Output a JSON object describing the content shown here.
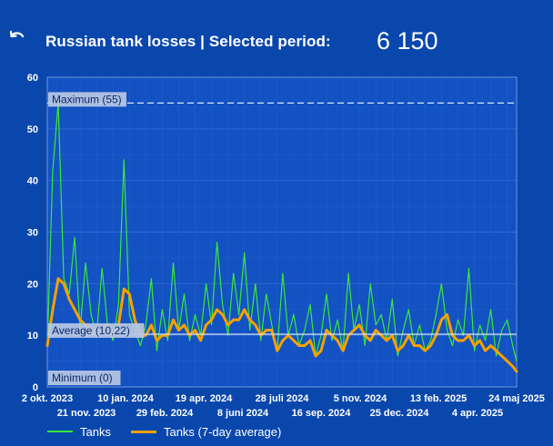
{
  "header": {
    "back_icon": "undo-arrow-icon",
    "title": "Russian tank losses | Selected period:",
    "total": "6 150"
  },
  "chart_data": {
    "type": "line",
    "y_ticks": [
      "0",
      "10",
      "20",
      "30",
      "40",
      "50",
      "60"
    ],
    "ylim": [
      0,
      60
    ],
    "x_range": [
      "2023-10-02",
      "2025-05-24"
    ],
    "x_tick_labels_top": [
      "2 okt. 2023",
      "10 jan. 2024",
      "19 apr. 2024",
      "28 juli 2024",
      "5 nov. 2024",
      "13 feb. 2025",
      "24 maj 2025"
    ],
    "x_tick_labels_bottom": [
      "21 nov. 2023",
      "29 feb. 2024",
      "8 juni 2024",
      "16 sep. 2024",
      "25 dec. 2024",
      "4 apr. 2025"
    ],
    "reference_lines": [
      {
        "label": "Maximum (55)",
        "value": 55,
        "style": "dashed"
      },
      {
        "label": "Average (10,22)",
        "value": 10.22,
        "style": "solid"
      },
      {
        "label": "Minimum (0)",
        "value": 0,
        "style": "solid"
      }
    ],
    "grid": true,
    "legend_position": "bottom-left",
    "series": [
      {
        "name": "Tanks",
        "color": "#39e839",
        "x": [
          "2023-10-02",
          "2023-10-09",
          "2023-10-16",
          "2023-10-23",
          "2023-10-30",
          "2023-11-06",
          "2023-11-13",
          "2023-11-20",
          "2023-11-27",
          "2023-12-04",
          "2023-12-11",
          "2023-12-18",
          "2023-12-25",
          "2024-01-01",
          "2024-01-08",
          "2024-01-15",
          "2024-01-22",
          "2024-01-29",
          "2024-02-05",
          "2024-02-12",
          "2024-02-19",
          "2024-02-26",
          "2024-03-04",
          "2024-03-11",
          "2024-03-18",
          "2024-03-25",
          "2024-04-01",
          "2024-04-08",
          "2024-04-15",
          "2024-04-22",
          "2024-04-29",
          "2024-05-06",
          "2024-05-13",
          "2024-05-20",
          "2024-05-27",
          "2024-06-03",
          "2024-06-10",
          "2024-06-17",
          "2024-06-24",
          "2024-07-01",
          "2024-07-08",
          "2024-07-15",
          "2024-07-22",
          "2024-07-29",
          "2024-08-05",
          "2024-08-12",
          "2024-08-19",
          "2024-08-26",
          "2024-09-02",
          "2024-09-09",
          "2024-09-16",
          "2024-09-23",
          "2024-09-30",
          "2024-10-07",
          "2024-10-14",
          "2024-10-21",
          "2024-10-28",
          "2024-11-04",
          "2024-11-11",
          "2024-11-18",
          "2024-11-25",
          "2024-12-02",
          "2024-12-09",
          "2024-12-16",
          "2024-12-23",
          "2024-12-30",
          "2025-01-06",
          "2025-01-13",
          "2025-01-20",
          "2025-01-27",
          "2025-02-03",
          "2025-02-10",
          "2025-02-17",
          "2025-02-24",
          "2025-03-03",
          "2025-03-10",
          "2025-03-17",
          "2025-03-24",
          "2025-03-31",
          "2025-04-07",
          "2025-04-14",
          "2025-04-21",
          "2025-04-28",
          "2025-05-05",
          "2025-05-12",
          "2025-05-19",
          "2025-05-24"
        ],
        "values": [
          8,
          42,
          55,
          21,
          18,
          29,
          11,
          24,
          14,
          10,
          23,
          12,
          9,
          16,
          44,
          14,
          11,
          8,
          12,
          21,
          7,
          15,
          9,
          24,
          11,
          18,
          9,
          14,
          10,
          20,
          12,
          28,
          16,
          10,
          22,
          14,
          26,
          11,
          20,
          9,
          18,
          12,
          7,
          22,
          10,
          14,
          8,
          11,
          16,
          6,
          10,
          18,
          9,
          13,
          7,
          22,
          11,
          16,
          8,
          20,
          12,
          14,
          9,
          17,
          6,
          11,
          15,
          8,
          12,
          7,
          9,
          14,
          20,
          11,
          8,
          13,
          10,
          23,
          7,
          12,
          9,
          15,
          6,
          11,
          13,
          8,
          5
        ]
      },
      {
        "name": "Tanks (7-day average)",
        "color": "#f5a000",
        "x": [
          "2023-10-02",
          "2023-10-09",
          "2023-10-16",
          "2023-10-23",
          "2023-10-30",
          "2023-11-06",
          "2023-11-13",
          "2023-11-20",
          "2023-11-27",
          "2023-12-04",
          "2023-12-11",
          "2023-12-18",
          "2023-12-25",
          "2024-01-01",
          "2024-01-08",
          "2024-01-15",
          "2024-01-22",
          "2024-01-29",
          "2024-02-05",
          "2024-02-12",
          "2024-02-19",
          "2024-02-26",
          "2024-03-04",
          "2024-03-11",
          "2024-03-18",
          "2024-03-25",
          "2024-04-01",
          "2024-04-08",
          "2024-04-15",
          "2024-04-22",
          "2024-04-29",
          "2024-05-06",
          "2024-05-13",
          "2024-05-20",
          "2024-05-27",
          "2024-06-03",
          "2024-06-10",
          "2024-06-17",
          "2024-06-24",
          "2024-07-01",
          "2024-07-08",
          "2024-07-15",
          "2024-07-22",
          "2024-07-29",
          "2024-08-05",
          "2024-08-12",
          "2024-08-19",
          "2024-08-26",
          "2024-09-02",
          "2024-09-09",
          "2024-09-16",
          "2024-09-23",
          "2024-09-30",
          "2024-10-07",
          "2024-10-14",
          "2024-10-21",
          "2024-10-28",
          "2024-11-04",
          "2024-11-11",
          "2024-11-18",
          "2024-11-25",
          "2024-12-02",
          "2024-12-09",
          "2024-12-16",
          "2024-12-23",
          "2024-12-30",
          "2025-01-06",
          "2025-01-13",
          "2025-01-20",
          "2025-01-27",
          "2025-02-03",
          "2025-02-10",
          "2025-02-17",
          "2025-02-24",
          "2025-03-03",
          "2025-03-10",
          "2025-03-17",
          "2025-03-24",
          "2025-03-31",
          "2025-04-07",
          "2025-04-14",
          "2025-04-21",
          "2025-04-28",
          "2025-05-05",
          "2025-05-12",
          "2025-05-19",
          "2025-05-24"
        ],
        "values": [
          8,
          15,
          21,
          20,
          17,
          15,
          13,
          12,
          11,
          10,
          11,
          12,
          10,
          12,
          19,
          18,
          13,
          10,
          10,
          12,
          9,
          10,
          10,
          13,
          11,
          12,
          10,
          11,
          9,
          12,
          13,
          15,
          14,
          12,
          13,
          13,
          15,
          13,
          12,
          10,
          11,
          11,
          7,
          9,
          10,
          9,
          8,
          8,
          9,
          6,
          7,
          11,
          10,
          9,
          7,
          10,
          11,
          12,
          10,
          9,
          11,
          10,
          9,
          10,
          7,
          8,
          10,
          8,
          8,
          7,
          8,
          10,
          13,
          14,
          10,
          9,
          9,
          10,
          8,
          9,
          7,
          8,
          7,
          6,
          5,
          4,
          3
        ]
      }
    ]
  }
}
